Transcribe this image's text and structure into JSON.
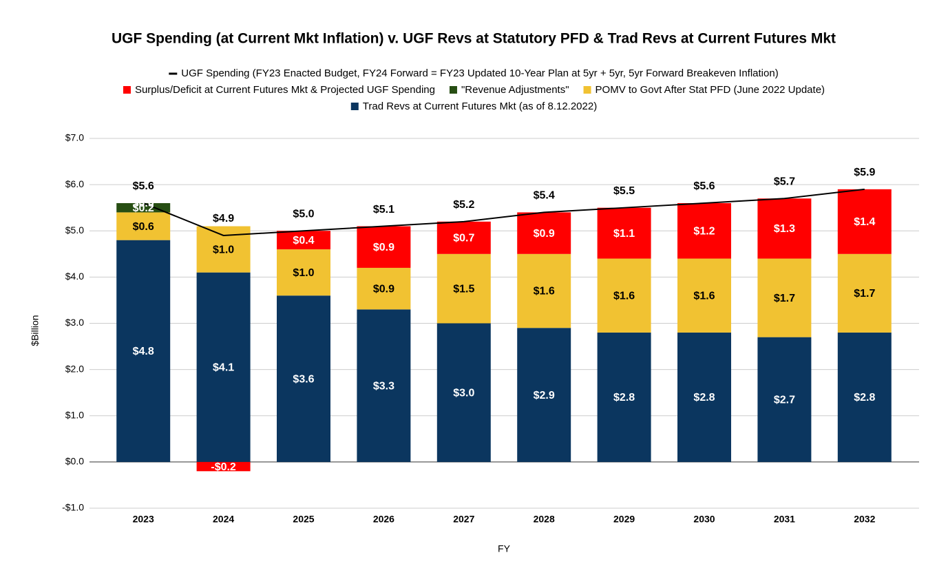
{
  "chart_data": {
    "type": "bar",
    "title": "UGF Spending (at Current Mkt Inflation) v. UGF Revs at Statutory PFD & Trad Revs at Current Futures Mkt",
    "x_label": "FY",
    "y_label": "$Billion",
    "categories": [
      "2023",
      "2024",
      "2025",
      "2026",
      "2027",
      "2028",
      "2029",
      "2030",
      "2031",
      "2032"
    ],
    "stacked": true,
    "grid": true,
    "ylim": [
      -1,
      7
    ],
    "yticks": [
      {
        "value": -1,
        "label": "-$1.0"
      },
      {
        "value": 0,
        "label": "$0.0"
      },
      {
        "value": 1,
        "label": "$1.0"
      },
      {
        "value": 2,
        "label": "$2.0"
      },
      {
        "value": 3,
        "label": "$3.0"
      },
      {
        "value": 4,
        "label": "$4.0"
      },
      {
        "value": 5,
        "label": "$5.0"
      },
      {
        "value": 6,
        "label": "$6.0"
      },
      {
        "value": 7,
        "label": "$7.0"
      }
    ],
    "series": [
      {
        "name": "UGF Spending (FY23 Enacted Budget, FY24 Forward = FY23 Updated 10-Year Plan at 5yr + 5yr, 5yr Forward Breakeven Inflation)",
        "type": "line",
        "color": "#000000",
        "values": [
          5.6,
          4.9,
          5.0,
          5.1,
          5.2,
          5.4,
          5.5,
          5.6,
          5.7,
          5.9
        ],
        "value_labels": [
          "$5.6",
          "$4.9",
          "$5.0",
          "$5.1",
          "$5.2",
          "$5.4",
          "$5.5",
          "$5.6",
          "$5.7",
          "$5.9"
        ]
      },
      {
        "name": "Surplus/Deficit at Current Futures Mkt & Projected UGF Spending",
        "color": "#ff0000",
        "values": [
          0.0,
          -0.2,
          0.4,
          0.9,
          0.7,
          0.9,
          1.1,
          1.2,
          1.3,
          1.4
        ],
        "value_labels": [
          "$0.0",
          "-$0.2",
          "$0.4",
          "$0.9",
          "$0.7",
          "$0.9",
          "$1.1",
          "$1.2",
          "$1.3",
          "$1.4"
        ]
      },
      {
        "name": "\"Revenue Adjustments\"",
        "color": "#274e13",
        "values": [
          0.2,
          0,
          0,
          0,
          0,
          0,
          0,
          0,
          0,
          0
        ],
        "value_labels": [
          "$0.2",
          null,
          null,
          null,
          null,
          null,
          null,
          null,
          null,
          null
        ]
      },
      {
        "name": "POMV to Govt After Stat PFD (June 2022 Update)",
        "color": "#f1c232",
        "values": [
          0.6,
          1.0,
          1.0,
          0.9,
          1.5,
          1.6,
          1.6,
          1.6,
          1.7,
          1.7
        ],
        "value_labels": [
          "$0.6",
          "$1.0",
          "$1.0",
          "$0.9",
          "$1.5",
          "$1.6",
          "$1.6",
          "$1.6",
          "$1.7",
          "$1.7"
        ]
      },
      {
        "name": "Trad Revs at Current Futures Mkt (as of 8.12.2022)",
        "color": "#0b365f",
        "values": [
          4.8,
          4.1,
          3.6,
          3.3,
          3.0,
          2.9,
          2.8,
          2.8,
          2.7,
          2.8
        ],
        "value_labels": [
          "$4.8",
          "$4.1",
          "$3.6",
          "$3.3",
          "$3.0",
          "$2.9",
          "$2.8",
          "$2.8",
          "$2.7",
          "$2.8"
        ]
      }
    ]
  }
}
